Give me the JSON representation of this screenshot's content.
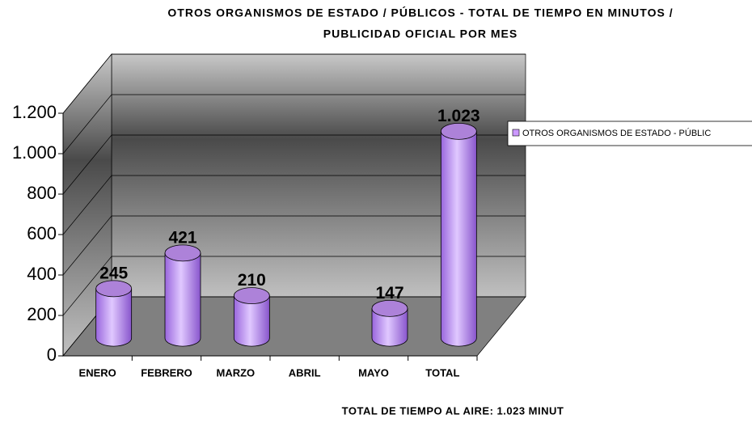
{
  "chart_data": {
    "type": "bar3d",
    "title": [
      "OTROS ORGANISMOS DE ESTADO / PÚBLICOS - TOTAL DE TIEMPO EN MINUTOS /",
      "PUBLICIDAD OFICIAL POR MES"
    ],
    "categories": [
      "ENERO",
      "FEBRERO",
      "MARZO",
      "ABRIL",
      "MAYO",
      "TOTAL"
    ],
    "series": [
      {
        "name": "OTROS ORGANISMOS DE ESTADO - PÚBLIC",
        "color": "#cc99ff",
        "values": [
          245,
          421,
          210,
          null,
          147,
          1023
        ],
        "value_labels": [
          "245",
          "421",
          "210",
          null,
          "147",
          "1.023"
        ]
      }
    ],
    "ylim": [
      0,
      1200
    ],
    "yticks": [
      0,
      200,
      400,
      600,
      800,
      {
        "value": 1000,
        "label": "1.000"
      },
      {
        "value": 1200,
        "label": "1.200"
      }
    ],
    "grid": true,
    "legend": "right",
    "annotation": "TOTAL DE TIEMPO AL AIRE: 1.023 MINUT"
  }
}
